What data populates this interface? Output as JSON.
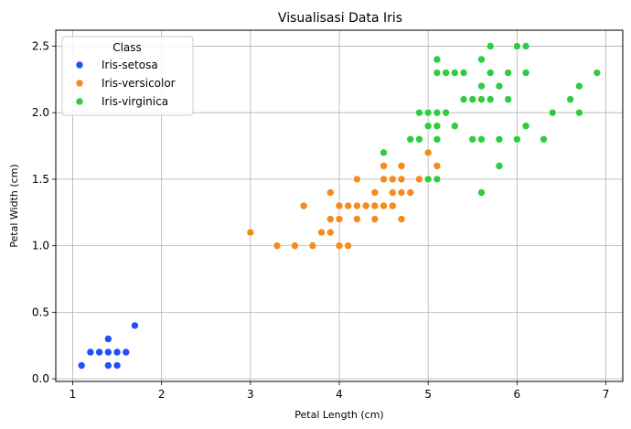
{
  "chart_data": {
    "type": "scatter",
    "title": "Visualisasi Data Iris",
    "xlabel": "Petal Length (cm)",
    "ylabel": "Petal Width (cm)",
    "xlim": [
      0.81,
      7.19
    ],
    "ylim": [
      -0.02,
      2.62
    ],
    "xticks": [
      1,
      2,
      3,
      4,
      5,
      6,
      7
    ],
    "yticks": [
      0.0,
      0.5,
      1.0,
      1.5,
      2.0,
      2.5
    ],
    "xtick_labels": [
      "1",
      "2",
      "3",
      "4",
      "5",
      "6",
      "7"
    ],
    "ytick_labels": [
      "0.0",
      "0.5",
      "1.0",
      "1.5",
      "2.0",
      "2.5"
    ],
    "grid": true,
    "legend": {
      "title": "Class",
      "position": "top-left"
    },
    "series": [
      {
        "name": "Iris-setosa",
        "color": "#1f50f5",
        "x": [
          1.1,
          1.2,
          1.3,
          1.4,
          1.4,
          1.5,
          1.6,
          1.4,
          1.5,
          1.4,
          1.7
        ],
        "y": [
          0.1,
          0.2,
          0.2,
          0.2,
          0.3,
          0.2,
          0.2,
          0.1,
          0.1,
          0.3,
          0.4
        ]
      },
      {
        "name": "Iris-versicolor",
        "color": "#f58a1f",
        "x": [
          3.0,
          3.3,
          3.5,
          3.7,
          3.6,
          3.8,
          3.9,
          3.9,
          3.9,
          4.0,
          4.0,
          4.0,
          4.1,
          4.1,
          4.2,
          4.2,
          4.3,
          4.4,
          4.4,
          4.4,
          4.5,
          4.5,
          4.5,
          4.6,
          4.6,
          4.6,
          4.7,
          4.7,
          4.7,
          4.7,
          4.8,
          4.8,
          4.9,
          4.9,
          5.0,
          5.1,
          5.1,
          4.2,
          4.6,
          4.2
        ],
        "y": [
          1.1,
          1.0,
          1.0,
          1.0,
          1.3,
          1.1,
          1.1,
          1.2,
          1.4,
          1.0,
          1.2,
          1.3,
          1.0,
          1.3,
          1.2,
          1.3,
          1.3,
          1.2,
          1.3,
          1.4,
          1.3,
          1.5,
          1.6,
          1.3,
          1.4,
          1.5,
          1.2,
          1.4,
          1.5,
          1.6,
          1.4,
          1.8,
          1.5,
          1.5,
          1.7,
          1.6,
          1.5,
          1.5,
          1.3,
          1.3
        ]
      },
      {
        "name": "Iris-virginica",
        "color": "#2ecc40",
        "x": [
          4.5,
          4.8,
          4.9,
          4.9,
          5.0,
          5.0,
          5.0,
          5.1,
          5.1,
          5.1,
          5.1,
          5.1,
          5.2,
          5.2,
          5.3,
          5.3,
          5.4,
          5.4,
          5.5,
          5.5,
          5.5,
          5.6,
          5.6,
          5.6,
          5.6,
          5.6,
          5.7,
          5.7,
          5.7,
          5.8,
          5.8,
          5.8,
          5.9,
          5.9,
          6.0,
          6.0,
          6.1,
          6.1,
          6.1,
          6.3,
          6.4,
          6.6,
          6.7,
          6.7,
          6.9,
          5.1,
          5.0,
          4.8
        ],
        "y": [
          1.7,
          1.8,
          1.8,
          2.0,
          1.5,
          1.9,
          2.0,
          1.5,
          1.8,
          1.9,
          2.0,
          2.3,
          2.0,
          2.3,
          1.9,
          2.3,
          2.1,
          2.3,
          1.8,
          2.1,
          1.8,
          1.4,
          1.8,
          2.1,
          2.2,
          2.4,
          2.1,
          2.3,
          2.5,
          1.6,
          1.8,
          2.2,
          2.1,
          2.3,
          1.8,
          2.5,
          1.9,
          2.3,
          2.5,
          1.8,
          2.0,
          2.1,
          2.0,
          2.2,
          2.3,
          2.4,
          2.0,
          1.8
        ]
      }
    ]
  }
}
